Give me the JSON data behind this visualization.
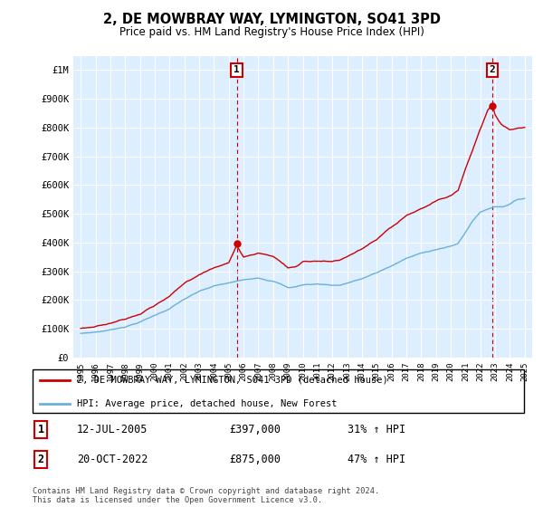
{
  "title": "2, DE MOWBRAY WAY, LYMINGTON, SO41 3PD",
  "subtitle": "Price paid vs. HM Land Registry's House Price Index (HPI)",
  "legend_line1": "2, DE MOWBRAY WAY, LYMINGTON, SO41 3PD (detached house)",
  "legend_line2": "HPI: Average price, detached house, New Forest",
  "annotation1_date": "12-JUL-2005",
  "annotation1_price": "£397,000",
  "annotation1_hpi": "31% ↑ HPI",
  "annotation2_date": "20-OCT-2022",
  "annotation2_price": "£875,000",
  "annotation2_hpi": "47% ↑ HPI",
  "footer": "Contains HM Land Registry data © Crown copyright and database right 2024.\nThis data is licensed under the Open Government Licence v3.0.",
  "hpi_color": "#6ab0d8",
  "price_color": "#cc0000",
  "annotation_box_color": "#cc0000",
  "plot_bg_color": "#ddeeff",
  "ylim": [
    0,
    1050000
  ],
  "yticks": [
    0,
    100000,
    200000,
    300000,
    400000,
    500000,
    600000,
    700000,
    800000,
    900000,
    1000000
  ],
  "ytick_labels": [
    "£0",
    "£100K",
    "£200K",
    "£300K",
    "£400K",
    "£500K",
    "£600K",
    "£700K",
    "£800K",
    "£900K",
    "£1M"
  ],
  "purchase1_year": 2005.54,
  "purchase1_price": 397000,
  "purchase2_year": 2022.8,
  "purchase2_price": 875000
}
